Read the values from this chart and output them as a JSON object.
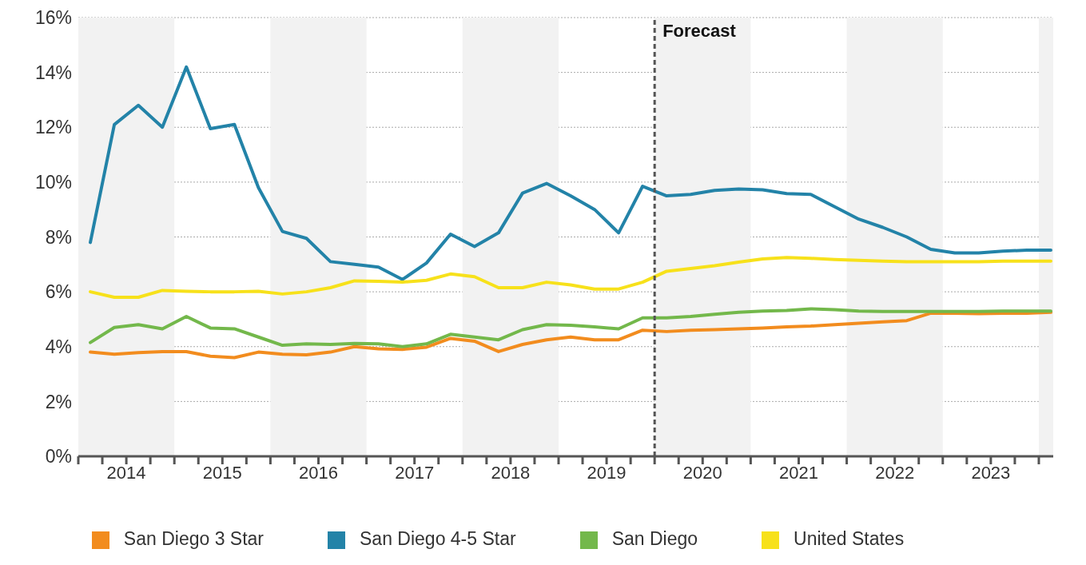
{
  "chart_data": {
    "type": "line",
    "x": [
      2014.125,
      2014.375,
      2014.625,
      2014.875,
      2015.125,
      2015.375,
      2015.625,
      2015.875,
      2016.125,
      2016.375,
      2016.625,
      2016.875,
      2017.125,
      2017.375,
      2017.625,
      2017.875,
      2018.125,
      2018.375,
      2018.625,
      2018.875,
      2019.125,
      2019.375,
      2019.625,
      2019.875,
      2020.125,
      2020.375,
      2020.625,
      2020.875,
      2021.125,
      2021.375,
      2021.625,
      2021.875,
      2022.125,
      2022.375,
      2022.625,
      2022.875,
      2023.125,
      2023.375,
      2023.625,
      2023.875,
      2024.125
    ],
    "series": [
      {
        "name": "San Diego 3 Star",
        "color": "#f28c1e",
        "values": [
          3.8,
          3.72,
          3.78,
          3.82,
          3.82,
          3.65,
          3.6,
          3.8,
          3.72,
          3.7,
          3.8,
          4.0,
          3.92,
          3.9,
          3.98,
          4.3,
          4.2,
          3.82,
          4.08,
          4.25,
          4.35,
          4.25,
          4.25,
          4.6,
          4.55,
          4.6,
          4.62,
          4.65,
          4.68,
          4.72,
          4.75,
          4.8,
          4.85,
          4.9,
          4.95,
          5.22,
          5.22,
          5.2,
          5.22,
          5.22,
          5.25
        ]
      },
      {
        "name": "San Diego 4-5 Star",
        "color": "#2383a8",
        "values": [
          7.8,
          12.1,
          12.8,
          12.0,
          14.2,
          11.95,
          12.1,
          9.8,
          8.2,
          7.95,
          7.1,
          7.0,
          6.9,
          6.45,
          7.05,
          8.1,
          7.65,
          8.15,
          9.6,
          9.95,
          9.5,
          9.0,
          8.15,
          9.85,
          9.5,
          9.55,
          9.7,
          9.75,
          9.72,
          9.58,
          9.55,
          9.1,
          8.65,
          8.35,
          8.0,
          7.55,
          7.42,
          7.42,
          7.48,
          7.52,
          7.52
        ]
      },
      {
        "name": "San Diego",
        "color": "#73b84b",
        "values": [
          4.15,
          4.7,
          4.8,
          4.65,
          5.1,
          4.68,
          4.65,
          4.35,
          4.05,
          4.1,
          4.08,
          4.12,
          4.1,
          4.0,
          4.1,
          4.45,
          4.35,
          4.25,
          4.62,
          4.8,
          4.78,
          4.72,
          4.65,
          5.05,
          5.05,
          5.1,
          5.18,
          5.25,
          5.3,
          5.32,
          5.38,
          5.35,
          5.3,
          5.28,
          5.28,
          5.28,
          5.28,
          5.28,
          5.3,
          5.3,
          5.3
        ]
      },
      {
        "name": "United States",
        "color": "#f7e11b",
        "values": [
          6.0,
          5.8,
          5.8,
          6.05,
          6.02,
          6.0,
          6.0,
          6.02,
          5.92,
          6.0,
          6.15,
          6.4,
          6.38,
          6.35,
          6.42,
          6.65,
          6.55,
          6.15,
          6.15,
          6.35,
          6.25,
          6.1,
          6.1,
          6.35,
          6.75,
          6.85,
          6.95,
          7.08,
          7.2,
          7.25,
          7.22,
          7.18,
          7.15,
          7.12,
          7.1,
          7.1,
          7.1,
          7.1,
          7.12,
          7.12,
          7.12
        ]
      }
    ],
    "xlim": [
      2014,
      2024.15
    ],
    "xticks": [
      {
        "value": 2014,
        "label": null
      },
      {
        "value": 2014.25,
        "label": null
      },
      {
        "value": 2014.5,
        "label": "2014"
      },
      {
        "value": 2014.75,
        "label": null
      },
      {
        "value": 2015,
        "label": null
      },
      {
        "value": 2015.25,
        "label": null
      },
      {
        "value": 2015.5,
        "label": "2015"
      },
      {
        "value": 2015.75,
        "label": null
      },
      {
        "value": 2016,
        "label": null
      },
      {
        "value": 2016.25,
        "label": null
      },
      {
        "value": 2016.5,
        "label": "2016"
      },
      {
        "value": 2016.75,
        "label": null
      },
      {
        "value": 2017,
        "label": null
      },
      {
        "value": 2017.25,
        "label": null
      },
      {
        "value": 2017.5,
        "label": "2017"
      },
      {
        "value": 2017.75,
        "label": null
      },
      {
        "value": 2018,
        "label": null
      },
      {
        "value": 2018.25,
        "label": null
      },
      {
        "value": 2018.5,
        "label": "2018"
      },
      {
        "value": 2018.75,
        "label": null
      },
      {
        "value": 2019,
        "label": null
      },
      {
        "value": 2019.25,
        "label": null
      },
      {
        "value": 2019.5,
        "label": "2019"
      },
      {
        "value": 2019.75,
        "label": null
      },
      {
        "value": 2020,
        "label": null
      },
      {
        "value": 2020.25,
        "label": null
      },
      {
        "value": 2020.5,
        "label": "2020"
      },
      {
        "value": 2020.75,
        "label": null
      },
      {
        "value": 2021,
        "label": null
      },
      {
        "value": 2021.25,
        "label": null
      },
      {
        "value": 2021.5,
        "label": "2021"
      },
      {
        "value": 2021.75,
        "label": null
      },
      {
        "value": 2022,
        "label": null
      },
      {
        "value": 2022.25,
        "label": null
      },
      {
        "value": 2022.5,
        "label": "2022"
      },
      {
        "value": 2022.75,
        "label": null
      },
      {
        "value": 2023,
        "label": null
      },
      {
        "value": 2023.25,
        "label": null
      },
      {
        "value": 2023.5,
        "label": "2023"
      },
      {
        "value": 2023.75,
        "label": null
      },
      {
        "value": 2024,
        "label": null
      }
    ],
    "ylim": [
      0,
      16
    ],
    "yticks": [
      {
        "value": 0,
        "label": "0%"
      },
      {
        "value": 2,
        "label": "2%"
      },
      {
        "value": 4,
        "label": "4%"
      },
      {
        "value": 6,
        "label": "6%"
      },
      {
        "value": 8,
        "label": "8%"
      },
      {
        "value": 10,
        "label": "10%"
      },
      {
        "value": 12,
        "label": "12%"
      },
      {
        "value": 14,
        "label": "14%"
      },
      {
        "value": 16,
        "label": "16%"
      }
    ],
    "grid": "y",
    "legend": "bottom",
    "line_style": "solid",
    "bands": [
      {
        "axis": "x",
        "from": 2014,
        "to": 2015,
        "color": "#f2f2f2"
      },
      {
        "axis": "x",
        "from": 2016,
        "to": 2017,
        "color": "#f2f2f2"
      },
      {
        "axis": "x",
        "from": 2018,
        "to": 2019,
        "color": "#f2f2f2"
      },
      {
        "axis": "x",
        "from": 2020,
        "to": 2021,
        "color": "#f2f2f2"
      },
      {
        "axis": "x",
        "from": 2022,
        "to": 2023,
        "color": "#f2f2f2"
      },
      {
        "axis": "x",
        "from": 2024,
        "to": 2024.15,
        "color": "#f2f2f2"
      }
    ],
    "ref_lines": [
      {
        "axis": "x",
        "value": 2020,
        "label": "Forecast",
        "color": "#555555",
        "line_style": "dashed"
      }
    ]
  }
}
